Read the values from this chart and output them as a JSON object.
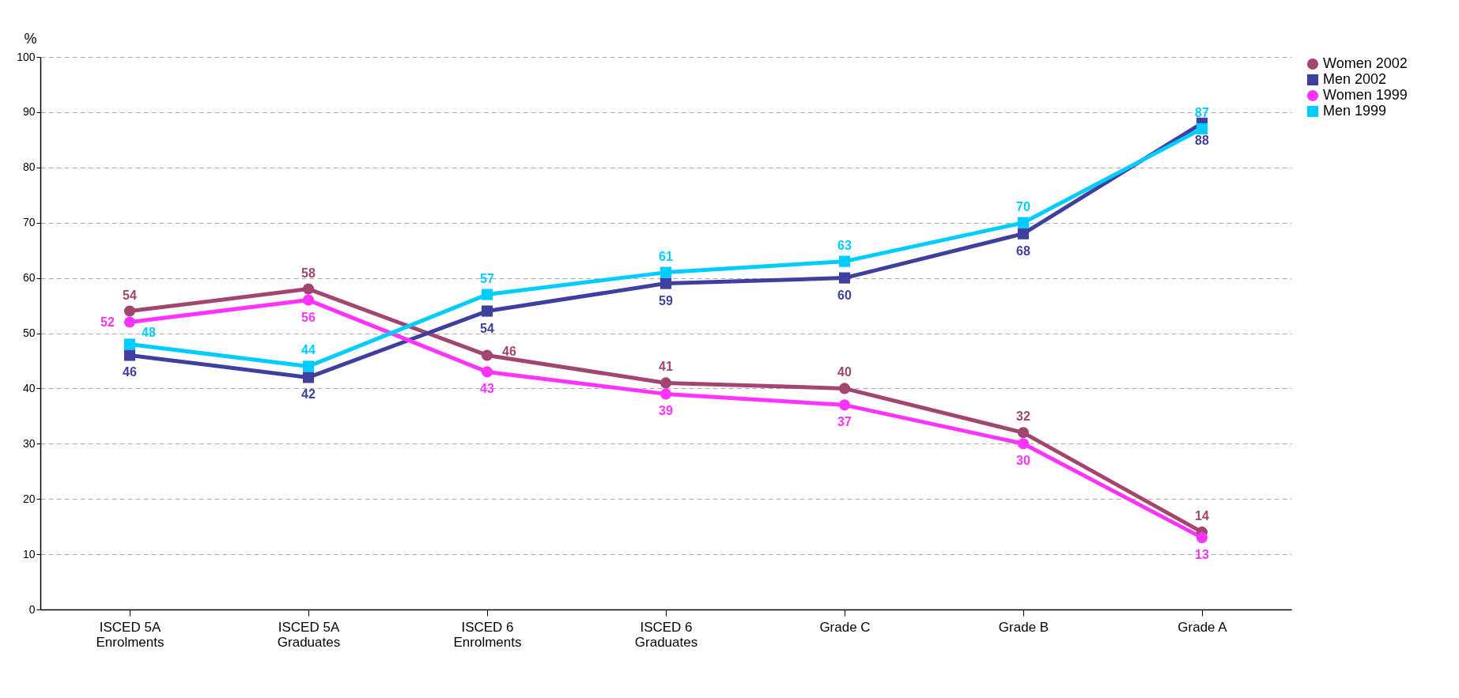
{
  "chart_data": {
    "type": "line",
    "ylabel": "%",
    "categories": [
      "ISCED 5A\nEnrolments",
      "ISCED 5A\nGraduates",
      "ISCED 6\nEnrolments",
      "ISCED 6\nGraduates",
      "Grade C",
      "Grade B",
      "Grade A"
    ],
    "series": [
      {
        "name": "Women 2002",
        "color": "#a3466f",
        "marker": "circle",
        "values": [
          54,
          58,
          46,
          41,
          40,
          32,
          14
        ]
      },
      {
        "name": "Men 2002",
        "color": "#3f3fa0",
        "marker": "square",
        "values": [
          46,
          42,
          54,
          59,
          60,
          68,
          88
        ]
      },
      {
        "name": "Women 1999",
        "color": "#ff33ff",
        "marker": "circle",
        "values": [
          52,
          56,
          43,
          39,
          37,
          30,
          13
        ]
      },
      {
        "name": "Men 1999",
        "color": "#00ccff",
        "marker": "square",
        "values": [
          48,
          44,
          57,
          61,
          63,
          70,
          87
        ]
      }
    ],
    "ylim": [
      0,
      100
    ],
    "yticks": [
      0,
      10,
      20,
      30,
      40,
      50,
      60,
      70,
      80,
      90,
      100
    ],
    "grid": "y",
    "legend": "right",
    "data_labels": true,
    "line_style": "solid"
  }
}
